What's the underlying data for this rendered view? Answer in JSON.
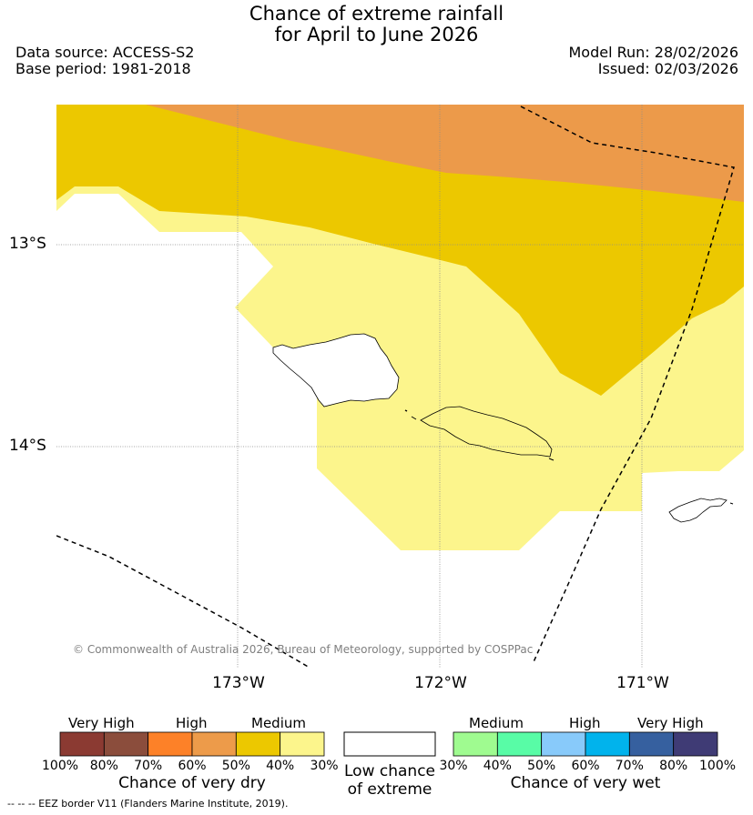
{
  "header": {
    "title_line1": "Chance of extreme rainfall",
    "title_line2": "for April to June 2026",
    "data_source": "Data source: ACCESS-S2",
    "base_period": "Base period: 1981-2018",
    "model_run": "Model Run: 28/02/2026",
    "issued": "Issued: 02/03/2026"
  },
  "map": {
    "lat_labels": [
      "13°S",
      "14°S"
    ],
    "lon_labels": [
      "173°W",
      "172°W",
      "171°W"
    ],
    "copyright": "© Commonwealth of Australia 2026, Bureau of Meteorology, supported by COSPPac",
    "region_colors": {
      "dry_high": "#ec9a4a",
      "dry_medium": "#ecc800",
      "dry_low": "#fcf58c",
      "land_outline": "#000000",
      "eez_border": "#000000",
      "grid": "#999999"
    }
  },
  "legend": {
    "dry": {
      "group_labels": [
        "Very High",
        "High",
        "Medium"
      ],
      "colors": [
        "#8b3a32",
        "#8b4d3c",
        "#fd8128",
        "#ed9b4a",
        "#ecc800",
        "#fcf58c"
      ],
      "ticks": [
        "100%",
        "80%",
        "70%",
        "60%",
        "50%",
        "40%",
        "30%"
      ],
      "title": "Chance of very dry"
    },
    "low": {
      "title_line1": "Low chance",
      "title_line2": "of extreme",
      "color": "#ffffff"
    },
    "wet": {
      "group_labels": [
        "Medium",
        "High",
        "Very High"
      ],
      "colors": [
        "#9ffb90",
        "#58fca6",
        "#88cafa",
        "#01b3ec",
        "#36609f",
        "#3f3b75"
      ],
      "ticks": [
        "30%",
        "40%",
        "50%",
        "60%",
        "70%",
        "80%",
        "100%"
      ],
      "title": "Chance of very wet"
    }
  },
  "footer": {
    "eez_note": "--  --  -- EEZ border V11 (Flanders Marine Institute, 2019)."
  }
}
